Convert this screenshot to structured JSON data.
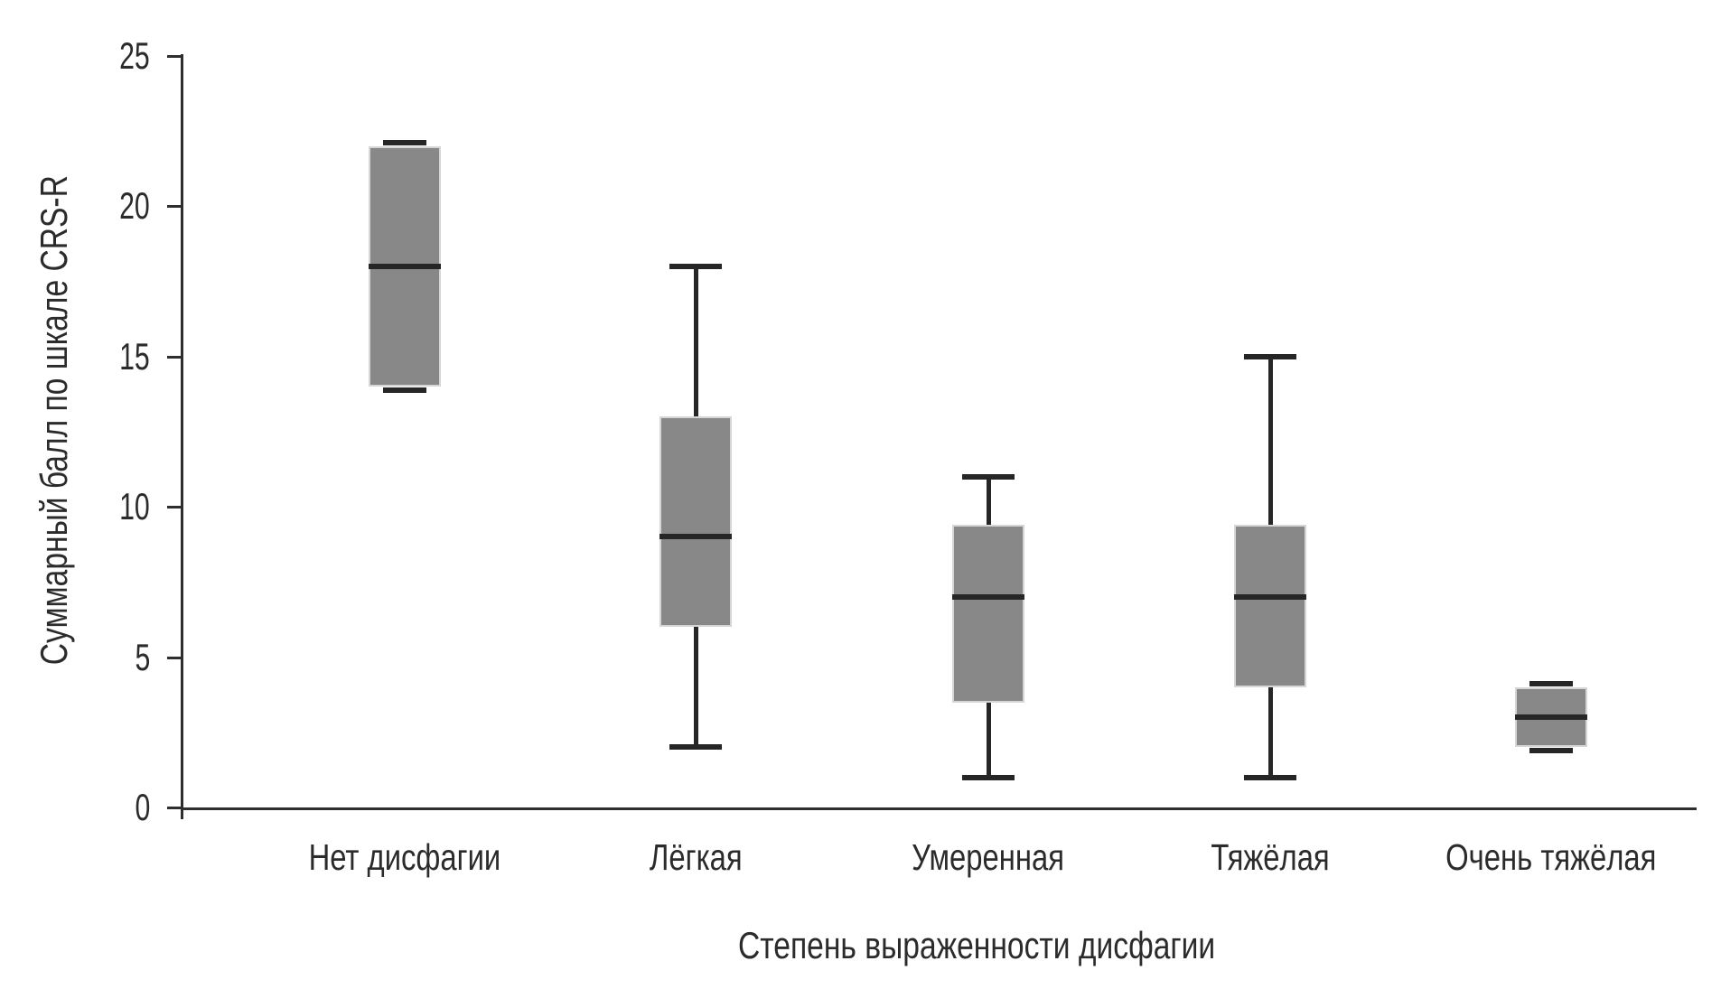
{
  "chart_data": {
    "type": "boxplot",
    "title": "",
    "xlabel": "Степень выраженности дисфагии",
    "ylabel": "Суммарный балл по шкале CRS-R",
    "ylim": [
      0,
      25
    ],
    "yticks": [
      0,
      5,
      10,
      15,
      20,
      25
    ],
    "grid": false,
    "legend": false,
    "categories": [
      "Нет дисфагии",
      "Лёгкая",
      "Умеренная",
      "Тяжёлая",
      "Очень тяжёлая"
    ],
    "boxes": [
      {
        "category": "Нет дисфагии",
        "min": 14,
        "q1": 14,
        "median": 18,
        "q3": 22,
        "max": 22
      },
      {
        "category": "Лёгкая",
        "min": 2,
        "q1": 6,
        "median": 9,
        "q3": 13,
        "max": 18
      },
      {
        "category": "Умеренная",
        "min": 1,
        "q1": 3.5,
        "median": 7,
        "q3": 9.4,
        "max": 11
      },
      {
        "category": "Тяжёлая",
        "min": 1,
        "q1": 4,
        "median": 7,
        "q3": 9.4,
        "max": 15
      },
      {
        "category": "Очень тяжёлая",
        "min": 2,
        "q1": 2,
        "median": 3,
        "q3": 4,
        "max": 4
      }
    ],
    "colors": {
      "box_fill": "#888888",
      "box_outline": "#d6d6d6",
      "line": "#262626",
      "axis": "#2e2e2e",
      "text": "#2b2b2b",
      "background": "#ffffff"
    }
  }
}
